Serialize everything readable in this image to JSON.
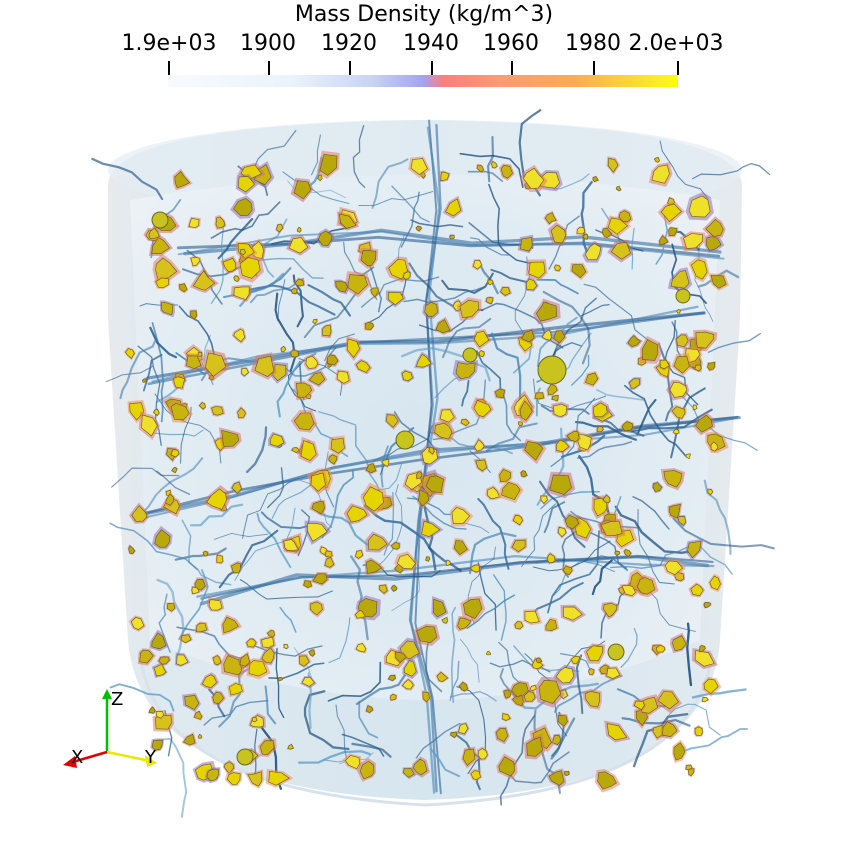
{
  "colorbar": {
    "title": "Mass Density (kg/m^3)",
    "ticks": [
      "1.9e+03",
      "1900",
      "1920",
      "1940",
      "1960",
      "1980",
      "2.0e+03"
    ],
    "colormap": [
      "#f7fbff",
      "#c9d3f3",
      "#a3a3f0",
      "#ff7d7d",
      "#ffab55",
      "#ffff00"
    ]
  },
  "axes": {
    "x_label": "X",
    "y_label": "Y",
    "z_label": "Z",
    "x_color": "#e00000",
    "y_color": "#e8e800",
    "z_color": "#00c000"
  }
}
